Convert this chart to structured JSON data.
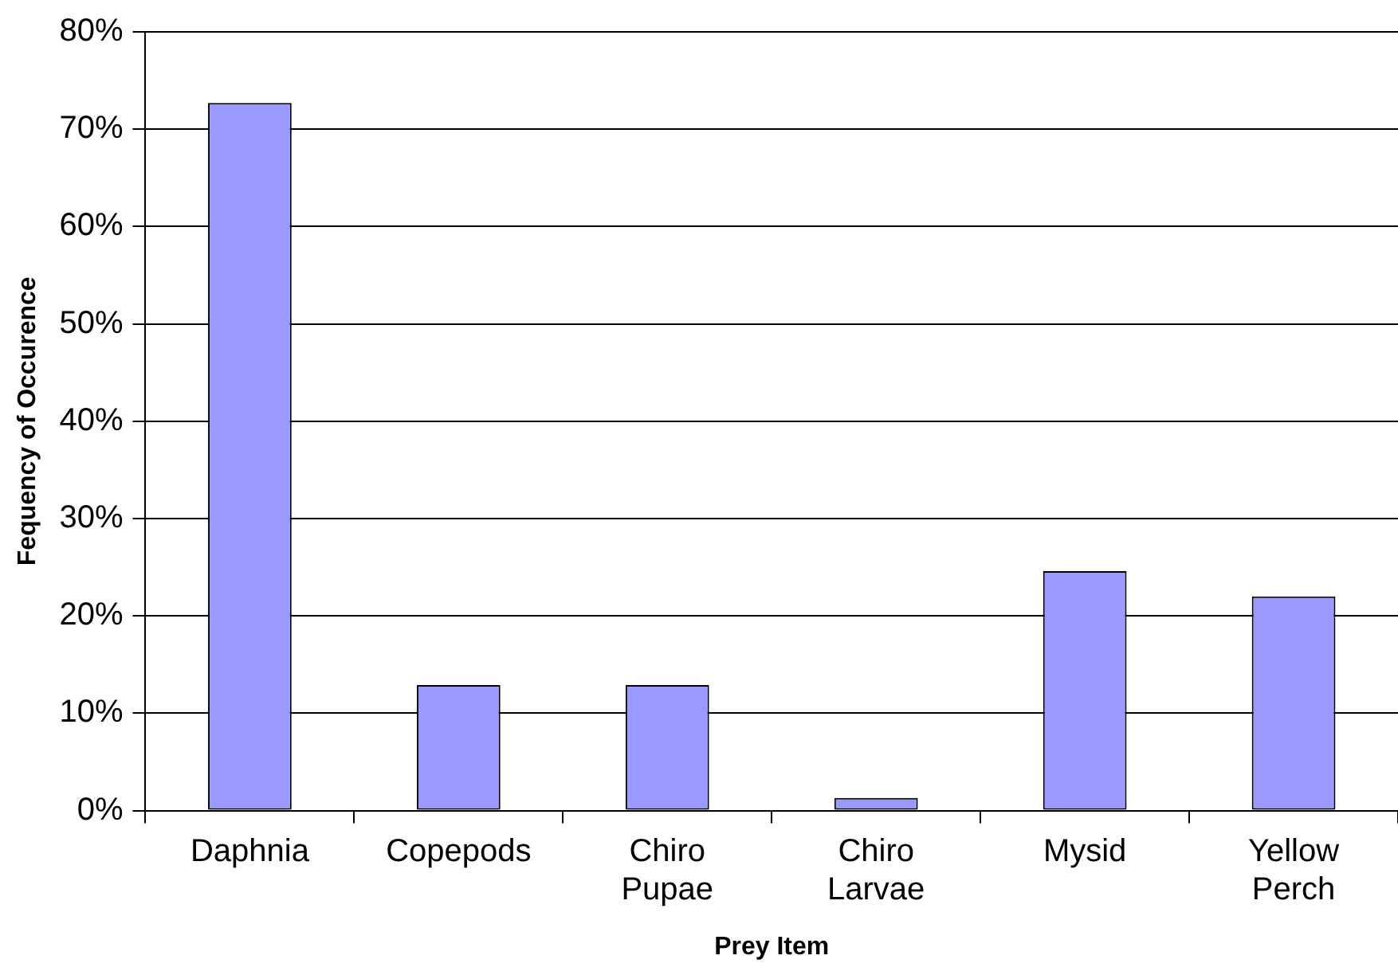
{
  "chart_data": {
    "type": "bar",
    "xlabel": "Prey Item",
    "ylabel": "Fequency of Occurence",
    "categories": [
      "Daphnia",
      "Copepods",
      "Chiro Pupae",
      "Chiro Larvae",
      "Mysid",
      "Yellow Perch"
    ],
    "values": [
      72.7,
      12.9,
      12.9,
      1.3,
      24.6,
      22.0
    ],
    "color": "#9999ff",
    "ylim": [
      0,
      80
    ],
    "yticks": [
      {
        "value": 0,
        "label": "0%"
      },
      {
        "value": 10,
        "label": "10%"
      },
      {
        "value": 20,
        "label": "20%"
      },
      {
        "value": 30,
        "label": "30%"
      },
      {
        "value": 40,
        "label": "40%"
      },
      {
        "value": 50,
        "label": "50%"
      },
      {
        "value": 60,
        "label": "60%"
      },
      {
        "value": 70,
        "label": "70%"
      },
      {
        "value": 80,
        "label": "80%"
      }
    ],
    "grid": "y",
    "legend": false
  }
}
